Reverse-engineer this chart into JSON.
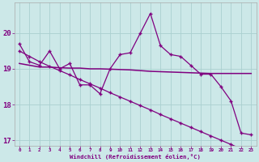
{
  "x_values": [
    0,
    1,
    2,
    3,
    4,
    5,
    6,
    7,
    8,
    9,
    10,
    11,
    12,
    13,
    14,
    15,
    16,
    17,
    18,
    19,
    20,
    21,
    22,
    23
  ],
  "x_labels": [
    "0",
    "1",
    "2",
    "3",
    "4",
    "5",
    "6",
    "7",
    "8",
    "9",
    "10",
    "11",
    "12",
    "13",
    "14",
    "15",
    "16",
    "17",
    "18",
    "19",
    "20",
    "21",
    "22",
    "23"
  ],
  "series_zigzag": [
    19.7,
    19.2,
    19.1,
    19.5,
    19.0,
    19.15,
    18.55,
    18.55,
    18.3,
    19.0,
    19.4,
    19.45,
    20.0,
    20.55,
    19.65,
    19.4,
    19.35,
    19.1,
    18.85,
    18.85,
    18.5,
    18.1,
    17.2,
    17.15
  ],
  "series_flat": [
    19.15,
    19.1,
    19.05,
    19.05,
    19.03,
    19.02,
    19.02,
    19.0,
    19.0,
    18.99,
    18.98,
    18.97,
    18.95,
    18.93,
    18.92,
    18.91,
    18.9,
    18.89,
    18.88,
    18.87,
    18.87,
    18.87,
    18.87,
    18.87
  ],
  "series_decline": [
    19.5,
    19.35,
    19.2,
    19.07,
    18.95,
    18.83,
    18.7,
    18.58,
    18.46,
    18.33,
    18.21,
    18.09,
    17.97,
    17.85,
    17.72,
    17.6,
    17.48,
    17.36,
    17.24,
    17.12,
    17.0,
    16.88,
    16.76,
    16.64
  ],
  "line_color": "#800080",
  "bg_color": "#cce8e8",
  "grid_color": "#aad0d0",
  "xlabel": "Windchill (Refroidissement éolien,°C)",
  "ylim": [
    16.85,
    20.85
  ],
  "xlim": [
    -0.5,
    23.5
  ],
  "yticks": [
    17,
    18,
    19,
    20
  ],
  "figsize": [
    3.2,
    2.0
  ],
  "dpi": 100
}
